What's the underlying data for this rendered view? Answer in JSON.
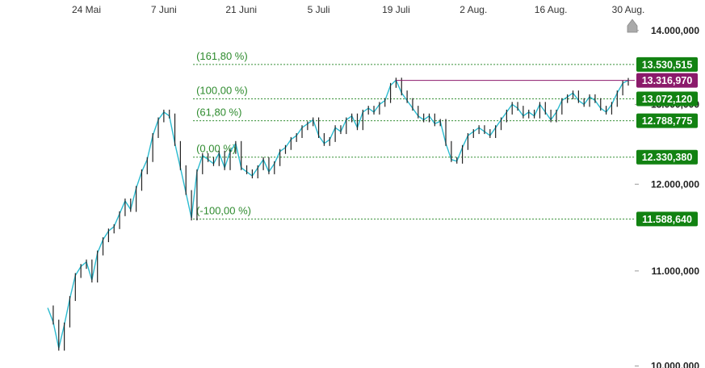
{
  "chart_data": {
    "type": "line",
    "x_ticks": [
      "24 Mai",
      "7 Juni",
      "21 Juni",
      "5 Juli",
      "19 Juli",
      "2 Aug.",
      "16 Aug.",
      "30 Aug."
    ],
    "y_ticks": [
      "14.000,000",
      "13.000,000",
      "12.000,000",
      "11.000,000",
      "10.000,000"
    ],
    "y_tick_values": [
      14000000,
      13000000,
      12000000,
      11000000,
      10000000
    ],
    "ylim": [
      9980000,
      14180000
    ],
    "y_scale": "log",
    "grid": false,
    "fibonacci_levels": [
      {
        "label": "(161,80 %)",
        "value": 13530515,
        "value_text": "13.530,515"
      },
      {
        "label": "(100,00 %)",
        "value": 13072120,
        "value_text": "13.072,120"
      },
      {
        "label": "(61,80 %)",
        "value": 12788775,
        "value_text": "12.788,775"
      },
      {
        "label": "(0,00 %)",
        "value": 12330380,
        "value_text": "12.330,380"
      },
      {
        "label": "(-100,00 %)",
        "value": 11588640,
        "value_text": "11.588,640"
      }
    ],
    "resistance_line": {
      "value": 13316970,
      "value_text": "13.316,970",
      "from": "19 Juli",
      "to": "30 Aug."
    },
    "series": [
      {
        "points": [
          [
            "17 Mai",
            10600000
          ],
          [
            "18 Mai",
            10450000
          ],
          [
            "19 Mai",
            10180000
          ],
          [
            "20 Mai",
            10420000
          ],
          [
            "21 Mai",
            10700000
          ],
          [
            "22 Mai",
            10950000
          ],
          [
            "23 Mai",
            11050000
          ],
          [
            "24 Mai",
            11100000
          ],
          [
            "25 Mai",
            10900000
          ],
          [
            "26 Mai",
            11200000
          ],
          [
            "27 Mai",
            11350000
          ],
          [
            "28 Mai",
            11450000
          ],
          [
            "29 Mai",
            11500000
          ],
          [
            "30 Mai",
            11650000
          ],
          [
            "31 Mai",
            11800000
          ],
          [
            "1 Juni",
            11700000
          ],
          [
            "2 Juni",
            11950000
          ],
          [
            "3 Juni",
            12150000
          ],
          [
            "4 Juni",
            12300000
          ],
          [
            "5 Juni",
            12600000
          ],
          [
            "6 Juni",
            12800000
          ],
          [
            "7 Juni",
            12900000
          ],
          [
            "8 Juni",
            12850000
          ],
          [
            "9 Juni",
            12500000
          ],
          [
            "10 Juni",
            12200000
          ],
          [
            "11 Juni",
            11900000
          ],
          [
            "12 Juni",
            11600000
          ],
          [
            "13 Juni",
            12150000
          ],
          [
            "14 Juni",
            12350000
          ],
          [
            "15 Juni",
            12300000
          ],
          [
            "16 Juni",
            12250000
          ],
          [
            "17 Juni",
            12380000
          ],
          [
            "18 Juni",
            12200000
          ],
          [
            "19 Juni",
            12400000
          ],
          [
            "20 Juni",
            12500000
          ],
          [
            "21 Juni",
            12200000
          ],
          [
            "22 Juni",
            12150000
          ],
          [
            "23 Juni",
            12100000
          ],
          [
            "24 Juni",
            12200000
          ],
          [
            "25 Juni",
            12300000
          ],
          [
            "26 Juni",
            12150000
          ],
          [
            "27 Juni",
            12250000
          ],
          [
            "28 Juni",
            12400000
          ],
          [
            "29 Juni",
            12450000
          ],
          [
            "30 Juni",
            12550000
          ],
          [
            "1 Juli",
            12600000
          ],
          [
            "2 Juli",
            12700000
          ],
          [
            "3 Juli",
            12750000
          ],
          [
            "4 Juli",
            12800000
          ],
          [
            "5 Juli",
            12600000
          ],
          [
            "6 Juli",
            12500000
          ],
          [
            "7 Juli",
            12550000
          ],
          [
            "8 Juli",
            12700000
          ],
          [
            "9 Juli",
            12650000
          ],
          [
            "10 Juli",
            12800000
          ],
          [
            "11 Juli",
            12850000
          ],
          [
            "12 Juli",
            12700000
          ],
          [
            "13 Juli",
            12900000
          ],
          [
            "14 Juli",
            12950000
          ],
          [
            "15 Juli",
            12900000
          ],
          [
            "16 Juli",
            13000000
          ],
          [
            "17 Juli",
            13050000
          ],
          [
            "18 Juli",
            13250000
          ],
          [
            "19 Juli",
            13320000
          ],
          [
            "20 Juli",
            13150000
          ],
          [
            "21 Juli",
            13050000
          ],
          [
            "22 Juli",
            12950000
          ],
          [
            "23 Juli",
            12850000
          ],
          [
            "24 Juli",
            12800000
          ],
          [
            "25 Juli",
            12850000
          ],
          [
            "26 Juli",
            12750000
          ],
          [
            "27 Juli",
            12780000
          ],
          [
            "28 Juli",
            12500000
          ],
          [
            "29 Juli",
            12300000
          ],
          [
            "30 Juli",
            12280000
          ],
          [
            "31 Juli",
            12450000
          ],
          [
            "1 Aug.",
            12600000
          ],
          [
            "2 Aug.",
            12650000
          ],
          [
            "3 Aug.",
            12700000
          ],
          [
            "4 Aug.",
            12650000
          ],
          [
            "5 Aug.",
            12600000
          ],
          [
            "6 Aug.",
            12700000
          ],
          [
            "7 Aug.",
            12800000
          ],
          [
            "8 Aug.",
            12900000
          ],
          [
            "9 Aug.",
            13000000
          ],
          [
            "10 Aug.",
            12950000
          ],
          [
            "11 Aug.",
            12850000
          ],
          [
            "12 Aug.",
            12900000
          ],
          [
            "13 Aug.",
            12850000
          ],
          [
            "14 Aug.",
            13000000
          ],
          [
            "15 Aug.",
            12900000
          ],
          [
            "16 Aug.",
            12800000
          ],
          [
            "17 Aug.",
            12900000
          ],
          [
            "18 Aug.",
            13050000
          ],
          [
            "19 Aug.",
            13100000
          ],
          [
            "20 Aug.",
            13150000
          ],
          [
            "21 Aug.",
            13050000
          ],
          [
            "22 Aug.",
            13000000
          ],
          [
            "23 Aug.",
            13100000
          ],
          [
            "24 Aug.",
            13050000
          ],
          [
            "25 Aug.",
            12950000
          ],
          [
            "26 Aug.",
            12900000
          ],
          [
            "27 Aug.",
            13000000
          ],
          [
            "28 Aug.",
            13150000
          ],
          [
            "29 Aug.",
            13280000
          ],
          [
            "30 Aug.",
            13316970
          ]
        ]
      }
    ]
  },
  "colors": {
    "price_line": "#2bbbd0",
    "candles": "#222222",
    "fibonacci": "#2e8b2e",
    "resistance": "#8b1a6b",
    "badge_green": "#128212",
    "badge_resistance": "#8b1a6b",
    "marker": "#aaaaaa"
  },
  "icons": {
    "marker": "house-arrow-icon"
  }
}
